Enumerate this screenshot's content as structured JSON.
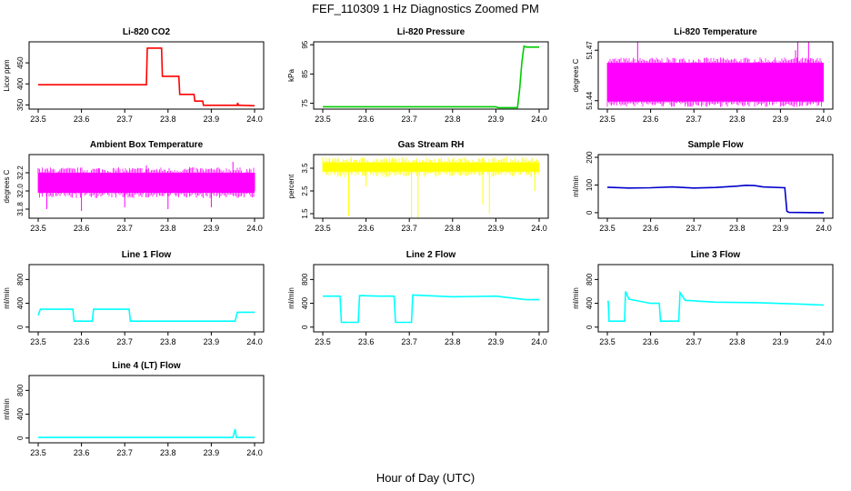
{
  "figure": {
    "title": "FEF_110309  1 Hz Diagnostics Zoomed PM",
    "xlabel": "Hour of Day (UTC)"
  },
  "chart_data": [
    {
      "type": "line",
      "title": "Li-820 CO2",
      "ylabel": "Licor ppm",
      "color": "#ff0000",
      "xlim": [
        23.5,
        24.0
      ],
      "ylim": [
        340,
        500
      ],
      "xticks": [
        "23.5",
        "23.6",
        "23.7",
        "23.8",
        "23.9",
        "24.0"
      ],
      "yticks": [
        {
          "v": 350,
          "label": "350"
        },
        {
          "v": 400,
          "label": "400"
        },
        {
          "v": 450,
          "label": "450"
        }
      ],
      "series": [
        {
          "x": [
            23.5,
            23.75,
            23.752,
            23.785,
            23.787,
            23.825,
            23.827,
            23.86,
            23.862,
            23.88,
            23.882,
            23.96,
            23.961,
            23.963,
            23.965,
            24.0
          ],
          "y": [
            398,
            398,
            485,
            485,
            418,
            418,
            375,
            375,
            359,
            359,
            349,
            349,
            355,
            349,
            349,
            348
          ]
        }
      ]
    },
    {
      "type": "line",
      "title": "Li-820 Pressure",
      "ylabel": "kPa",
      "color": "#00cc00",
      "xlim": [
        23.5,
        24.0
      ],
      "ylim": [
        73,
        96
      ],
      "xticks": [
        "23.5",
        "23.6",
        "23.7",
        "23.8",
        "23.9",
        "24.0"
      ],
      "yticks": [
        {
          "v": 75,
          "label": "75"
        },
        {
          "v": 85,
          "label": "85"
        },
        {
          "v": 95,
          "label": "95"
        }
      ],
      "series": [
        {
          "x": [
            23.5,
            23.9,
            23.905,
            23.95,
            23.955,
            23.96,
            23.965,
            23.97,
            24.0
          ],
          "y": [
            73.8,
            73.8,
            73.5,
            73.5,
            80,
            89,
            94.5,
            94.2,
            94.2
          ]
        }
      ]
    },
    {
      "type": "line",
      "title": "Li-820 Temperature",
      "ylabel": "degrees C",
      "color": "#ff00ff",
      "xlim": [
        23.5,
        24.0
      ],
      "ylim": [
        51.435,
        51.475
      ],
      "xticks": [
        "23.5",
        "23.6",
        "23.7",
        "23.8",
        "23.9",
        "24.0"
      ],
      "yticks": [
        {
          "v": 51.44,
          "label": "51.44"
        },
        {
          "v": 51.47,
          "label": "51.47"
        }
      ],
      "band": {
        "lo": 51.4395,
        "hi": 51.4625
      },
      "series": [
        {
          "x": [
            23.57,
            23.84,
            23.85,
            23.935,
            23.94,
            23.965
          ],
          "y": [
            51.475,
            51.463,
            51.463,
            51.47,
            51.475,
            51.475
          ]
        }
      ]
    },
    {
      "type": "line",
      "title": "Ambient Box Temperature",
      "ylabel": "degrees C",
      "color": "#ff00ff",
      "xlim": [
        23.5,
        24.0
      ],
      "ylim": [
        31.7,
        32.4
      ],
      "xticks": [
        "23.5",
        "23.6",
        "23.7",
        "23.8",
        "23.9",
        "24.0"
      ],
      "yticks": [
        {
          "v": 31.8,
          "label": "31.8"
        },
        {
          "v": 32.0,
          "label": "32.0"
        },
        {
          "v": 32.2,
          "label": "32.2"
        }
      ],
      "band": {
        "lo": 31.98,
        "hi": 32.2
      },
      "series": [
        {
          "x": [
            23.5,
            23.52,
            23.55,
            23.6,
            23.64,
            23.7,
            23.75,
            23.8,
            23.85,
            23.9,
            23.95,
            24.0
          ],
          "y": [
            32.25,
            31.8,
            32.22,
            31.78,
            32.25,
            31.82,
            32.28,
            31.8,
            32.26,
            31.82,
            32.32,
            32.0
          ]
        }
      ]
    },
    {
      "type": "line",
      "title": "Gas Stream RH",
      "ylabel": "percent",
      "color": "#ffff00",
      "xlim": [
        23.5,
        24.0
      ],
      "ylim": [
        1.3,
        4.1
      ],
      "xticks": [
        "23.5",
        "23.6",
        "23.7",
        "23.8",
        "23.9",
        "24.0"
      ],
      "yticks": [
        {
          "v": 1.5,
          "label": "1.5"
        },
        {
          "v": 2.5,
          "label": "2.5"
        },
        {
          "v": 3.5,
          "label": "3.5"
        }
      ],
      "band": {
        "lo": 3.35,
        "hi": 3.75
      },
      "series": [
        {
          "x": [
            23.56,
            23.6,
            23.705,
            23.72,
            23.87,
            23.885,
            23.99
          ],
          "y": [
            1.4,
            2.7,
            1.2,
            1.3,
            1.9,
            1.5,
            2.5
          ]
        }
      ]
    },
    {
      "type": "line",
      "title": "Sample Flow",
      "ylabel": "ml/min",
      "color": "#0000cc",
      "xlim": [
        23.5,
        24.0
      ],
      "ylim": [
        -20,
        210
      ],
      "xticks": [
        "23.5",
        "23.6",
        "23.7",
        "23.8",
        "23.9",
        "24.0"
      ],
      "yticks": [
        {
          "v": 0,
          "label": "0"
        },
        {
          "v": 100,
          "label": "100"
        },
        {
          "v": 200,
          "label": "200"
        }
      ],
      "series": [
        {
          "x": [
            23.5,
            23.55,
            23.6,
            23.65,
            23.7,
            23.75,
            23.8,
            23.82,
            23.84,
            23.86,
            23.91,
            23.915,
            23.92,
            24.0
          ],
          "y": [
            92,
            89,
            90,
            93,
            89,
            91,
            96,
            99,
            98,
            93,
            90,
            5,
            1,
            0
          ]
        }
      ]
    },
    {
      "type": "line",
      "title": "Line 1 Flow",
      "ylabel": "ml/min",
      "color": "#00ffff",
      "xlim": [
        23.5,
        24.0
      ],
      "ylim": [
        -80,
        1050
      ],
      "xticks": [
        "23.5",
        "23.6",
        "23.7",
        "23.8",
        "23.9",
        "24.0"
      ],
      "yticks": [
        {
          "v": 0,
          "label": "0"
        },
        {
          "v": 400,
          "label": "400"
        },
        {
          "v": 800,
          "label": "800"
        }
      ],
      "series": [
        {
          "x": [
            23.5,
            23.505,
            23.58,
            23.583,
            23.625,
            23.628,
            23.71,
            23.713,
            23.955,
            23.96,
            24.0
          ],
          "y": [
            200,
            300,
            300,
            100,
            100,
            300,
            300,
            100,
            100,
            250,
            250
          ]
        }
      ]
    },
    {
      "type": "line",
      "title": "Line 2 Flow",
      "ylabel": "ml/min",
      "color": "#00ffff",
      "xlim": [
        23.5,
        24.0
      ],
      "ylim": [
        -80,
        1050
      ],
      "xticks": [
        "23.5",
        "23.6",
        "23.7",
        "23.8",
        "23.9",
        "24.0"
      ],
      "yticks": [
        {
          "v": 0,
          "label": "0"
        },
        {
          "v": 400,
          "label": "400"
        },
        {
          "v": 800,
          "label": "800"
        }
      ],
      "series": [
        {
          "x": [
            23.5,
            23.54,
            23.543,
            23.582,
            23.585,
            23.63,
            23.665,
            23.668,
            23.705,
            23.708,
            23.8,
            23.9,
            23.97,
            24.0
          ],
          "y": [
            520,
            520,
            80,
            80,
            530,
            520,
            520,
            80,
            80,
            540,
            510,
            520,
            460,
            460
          ]
        }
      ]
    },
    {
      "type": "line",
      "title": "Line 3 Flow",
      "ylabel": "ml/min",
      "color": "#00ffff",
      "xlim": [
        23.5,
        24.0
      ],
      "ylim": [
        -80,
        1050
      ],
      "xticks": [
        "23.5",
        "23.6",
        "23.7",
        "23.8",
        "23.9",
        "24.0"
      ],
      "yticks": [
        {
          "v": 0,
          "label": "0"
        },
        {
          "v": 400,
          "label": "400"
        },
        {
          "v": 800,
          "label": "800"
        }
      ],
      "series": [
        {
          "x": [
            23.5,
            23.502,
            23.504,
            23.54,
            23.542,
            23.55,
            23.6,
            23.62,
            23.623,
            23.665,
            23.668,
            23.68,
            23.75,
            23.85,
            23.97,
            24.0
          ],
          "y": [
            430,
            430,
            100,
            100,
            600,
            470,
            400,
            400,
            100,
            100,
            580,
            450,
            420,
            410,
            380,
            370
          ]
        }
      ]
    },
    {
      "type": "line",
      "title": "Line 4 (LT) Flow",
      "ylabel": "ml/min",
      "color": "#00ffff",
      "xlim": [
        23.5,
        24.0
      ],
      "ylim": [
        -80,
        1050
      ],
      "xticks": [
        "23.5",
        "23.6",
        "23.7",
        "23.8",
        "23.9",
        "24.0"
      ],
      "yticks": [
        {
          "v": 0,
          "label": "0"
        },
        {
          "v": 400,
          "label": "400"
        },
        {
          "v": 800,
          "label": "800"
        }
      ],
      "series": [
        {
          "x": [
            23.5,
            23.95,
            23.955,
            23.958,
            23.962,
            24.0
          ],
          "y": [
            10,
            10,
            150,
            10,
            10,
            10
          ]
        }
      ]
    }
  ]
}
